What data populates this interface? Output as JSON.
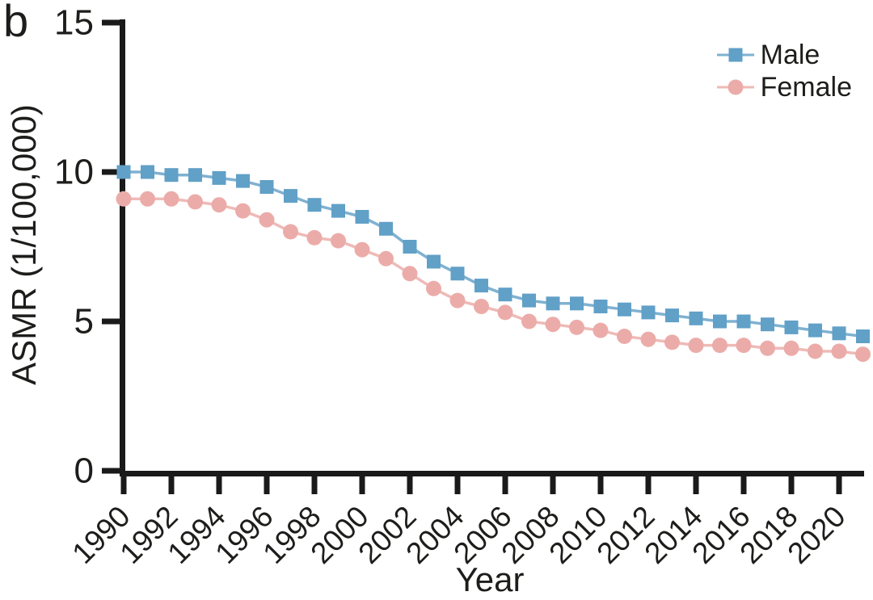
{
  "figure": {
    "panel_label": "b",
    "background": "#ffffff",
    "axis_color": "#1a1a1a",
    "text_color": "#1d1d1b"
  },
  "chart_data": {
    "type": "line",
    "title": "",
    "xlabel": "Year",
    "ylabel": "ASMR (1/100,000)",
    "xlim": [
      1990,
      2021
    ],
    "ylim": [
      0,
      15
    ],
    "grid": false,
    "legend_position": "top-right",
    "x": [
      1990,
      1991,
      1992,
      1993,
      1994,
      1995,
      1996,
      1997,
      1998,
      1999,
      2000,
      2001,
      2002,
      2003,
      2004,
      2005,
      2006,
      2007,
      2008,
      2009,
      2010,
      2011,
      2012,
      2013,
      2014,
      2015,
      2016,
      2017,
      2018,
      2019,
      2020,
      2021
    ],
    "x_tick_labels": [
      "1990",
      "1992",
      "1994",
      "1996",
      "1998",
      "2000",
      "2002",
      "2004",
      "2006",
      "2008",
      "2010",
      "2012",
      "2014",
      "2016",
      "2018",
      "2020"
    ],
    "y_ticks": [
      0,
      5,
      10,
      15
    ],
    "y_tick_labels": [
      "0",
      "5",
      "10",
      "15"
    ],
    "series": [
      {
        "name": "Male",
        "marker": "square",
        "color": "#61a0c7",
        "line_color": "#7fb1d1",
        "values": [
          10.0,
          10.0,
          9.9,
          9.9,
          9.8,
          9.7,
          9.5,
          9.2,
          8.9,
          8.7,
          8.5,
          8.1,
          7.5,
          7.0,
          6.6,
          6.2,
          5.9,
          5.7,
          5.6,
          5.6,
          5.5,
          5.4,
          5.3,
          5.2,
          5.1,
          5.0,
          5.0,
          4.9,
          4.8,
          4.7,
          4.6,
          4.5
        ]
      },
      {
        "name": "Female",
        "marker": "circle",
        "color": "#ebaca9",
        "line_color": "#efbab7",
        "values": [
          9.1,
          9.1,
          9.1,
          9.0,
          8.9,
          8.7,
          8.4,
          8.0,
          7.8,
          7.7,
          7.4,
          7.1,
          6.6,
          6.1,
          5.7,
          5.5,
          5.3,
          5.0,
          4.9,
          4.8,
          4.7,
          4.5,
          4.4,
          4.3,
          4.2,
          4.2,
          4.2,
          4.1,
          4.1,
          4.0,
          4.0,
          3.9
        ]
      }
    ]
  }
}
